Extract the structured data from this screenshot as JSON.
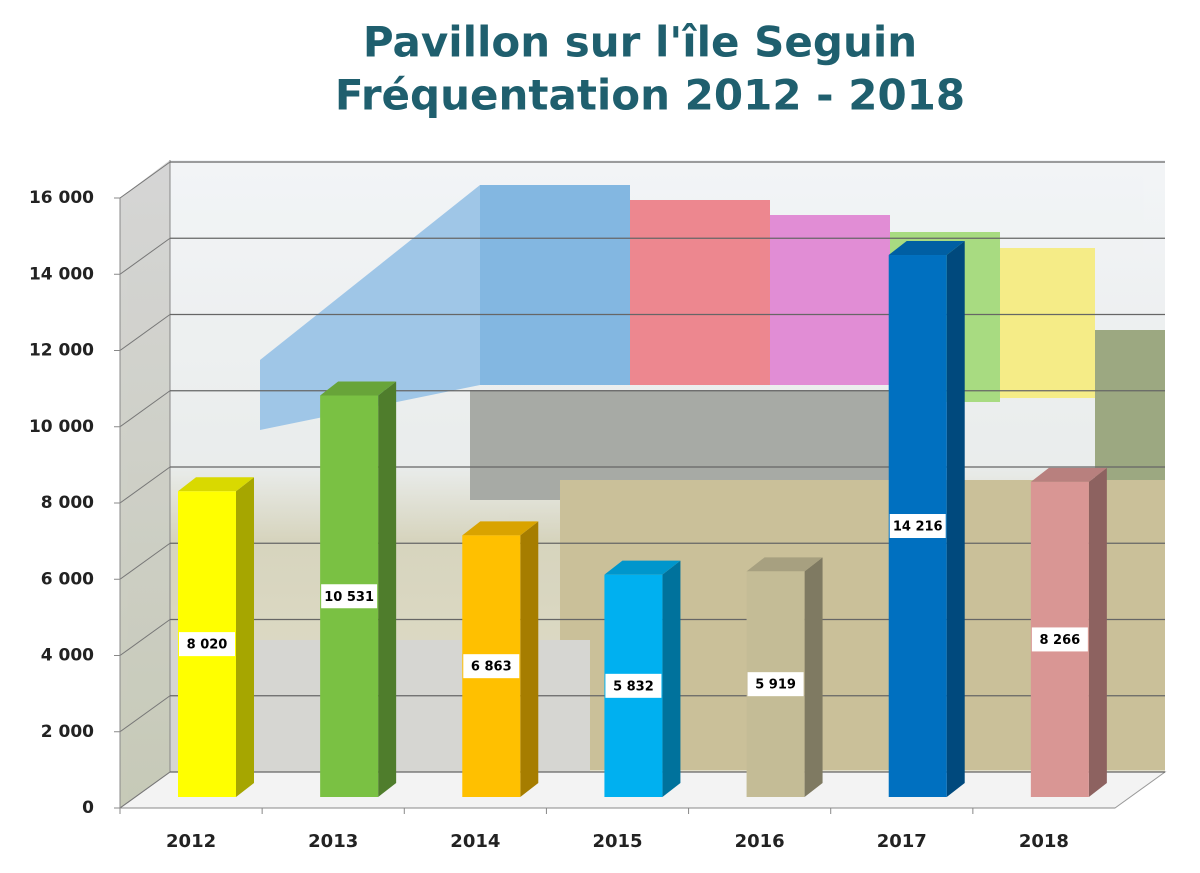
{
  "chart_data": {
    "type": "bar3d",
    "title": "Pavillon sur l'île Seguin",
    "subtitle": "Fréquentation 2012 - 2018",
    "categories": [
      "2012",
      "2013",
      "2014",
      "2015",
      "2016",
      "2017",
      "2018"
    ],
    "values": [
      8020,
      10531,
      6863,
      5832,
      5919,
      14216,
      8266
    ],
    "value_labels": [
      "8 020",
      "10 531",
      "6 863",
      "5 832",
      "5 919",
      "14 216",
      "8 266"
    ],
    "colors": [
      "#ffff00",
      "#7ac143",
      "#ffc000",
      "#00b0f0",
      "#c4bc96",
      "#0070c0",
      "#d99694"
    ],
    "ylim": [
      0,
      16000
    ],
    "yticks": [
      0,
      {
        "value": 2000,
        "label": "2 000"
      },
      {
        "value": 4000,
        "label": "4 000"
      },
      {
        "value": 6000,
        "label": "6 000"
      },
      {
        "value": 8000,
        "label": "8 000"
      },
      {
        "value": 10000,
        "label": "10 000"
      },
      {
        "value": 12000,
        "label": "12 000"
      },
      {
        "value": 14000,
        "label": "14 000"
      },
      {
        "value": 16000,
        "label": "16 000"
      }
    ],
    "grid": true
  }
}
